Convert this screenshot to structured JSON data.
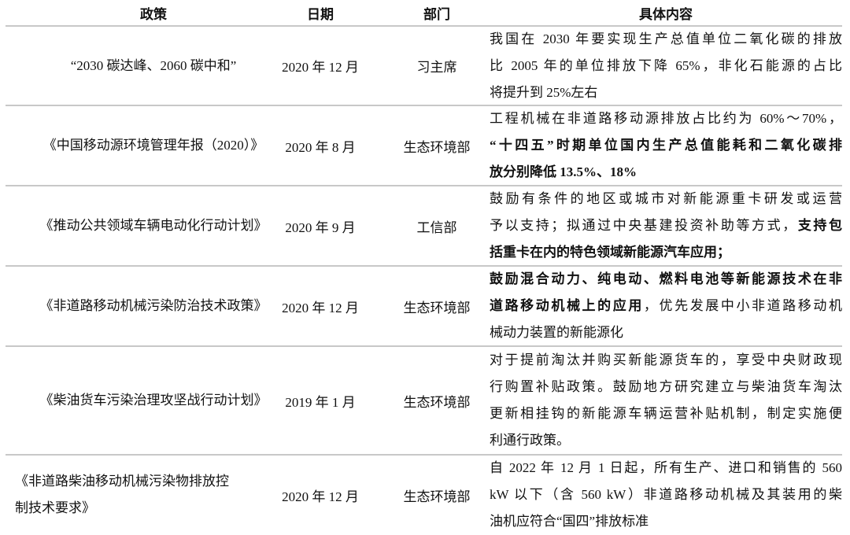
{
  "header": {
    "policy": "政策",
    "date": "日期",
    "department": "部门",
    "content": "具体内容"
  },
  "rows": [
    {
      "policy": [
        "“2030 碳达峰、2060 碳中和”"
      ],
      "date": "2020 年 12 月",
      "department": "习主席",
      "content": [
        [
          {
            "t": "我国在 2030 年要实现生产总值单位二氧化碳的排放",
            "b": false
          }
        ],
        [
          {
            "t": "比 2005 年的单位排放下降 65%，非化石能源的占比",
            "b": false
          }
        ],
        [
          {
            "t": "将提升到 25%左右",
            "b": false
          }
        ]
      ]
    },
    {
      "policy": [
        "《中国移动源环境管理年报（2020）》"
      ],
      "date": "2020 年 8 月",
      "department": "生态环境部",
      "content": [
        [
          {
            "t": "工程机械在非道路移动源排放占比约为 60%～70%，",
            "b": false
          }
        ],
        [
          {
            "t": "“十四五”时期单位国内生产总值能耗和二氧化碳排",
            "b": true
          }
        ],
        [
          {
            "t": "放分别降低 13.5%、18%",
            "b": true
          }
        ]
      ]
    },
    {
      "policy": [
        "《推动公共领域车辆电动化行动计划》"
      ],
      "date": "2020 年 9 月",
      "department": "工信部",
      "content": [
        [
          {
            "t": "鼓励有条件的地区或城市对新能源重卡研发或运营",
            "b": false
          }
        ],
        [
          {
            "t": "予以支持；拟通过中央基建投资补助等方式，",
            "b": false
          },
          {
            "t": "支持包",
            "b": true
          }
        ],
        [
          {
            "t": "括重卡在内的特色领域新能源汽车应用；",
            "b": true
          }
        ]
      ]
    },
    {
      "policy": [
        "《非道路移动机械污染防治技术政策》"
      ],
      "date": "2020 年 12 月",
      "department": "生态环境部",
      "content": [
        [
          {
            "t": "鼓励混合动力、纯电动、燃料电池等新能源技术在非",
            "b": true
          }
        ],
        [
          {
            "t": "道路移动机械上的应用",
            "b": true
          },
          {
            "t": "，优先发展中小非道路移动机",
            "b": false
          }
        ],
        [
          {
            "t": "械动力装置的新能源化",
            "b": false
          }
        ]
      ]
    },
    {
      "policy": [
        "《柴油货车污染治理攻坚战行动计划》"
      ],
      "date": "2019 年 1 月",
      "department": "生态环境部",
      "content": [
        [
          {
            "t": "对于提前淘汰并购买新能源货车的，享受中央财政现",
            "b": false
          }
        ],
        [
          {
            "t": "行购置补贴政策。鼓励地方研究建立与柴油货车淘汰",
            "b": false
          }
        ],
        [
          {
            "t": "更新相挂钩的新能源车辆运营补贴机制，制定实施便",
            "b": false
          }
        ],
        [
          {
            "t": "利通行政策。",
            "b": false
          }
        ]
      ]
    },
    {
      "policy": [
        "《非道路柴油移动机械污染物排放控",
        "制技术要求》"
      ],
      "date": "2020 年 12 月",
      "department": "生态环境部",
      "content": [
        [
          {
            "t": "自 2022 年 12 月 1 日起，所有生产、进口和销售的 560",
            "b": false
          }
        ],
        [
          {
            "t": "kW 以下（含 560 kW）非道路移动机械及其装用的柴",
            "b": false
          }
        ],
        [
          {
            "t": "油机应符合“国四”排放标准",
            "b": false
          }
        ]
      ]
    }
  ]
}
